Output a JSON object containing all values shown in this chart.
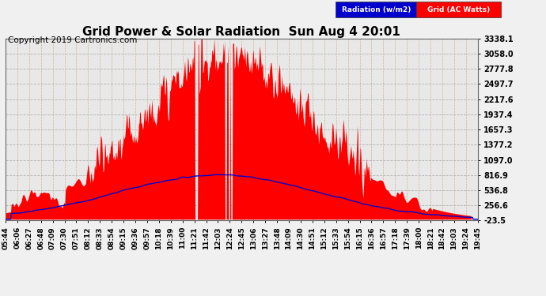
{
  "title": "Grid Power & Solar Radiation  Sun Aug 4 20:01",
  "copyright": "Copyright 2019 Cartronics.com",
  "yticks": [
    3338.1,
    3058.0,
    2777.8,
    2497.7,
    2217.6,
    1937.4,
    1657.3,
    1377.2,
    1097.0,
    816.9,
    536.8,
    256.6,
    -23.5
  ],
  "ymin": -23.5,
  "ymax": 3338.1,
  "background_color": "#f0f0f0",
  "plot_bg_color": "#e8e8e8",
  "grid_h_color": "#aaaaaa",
  "grid_v_color": "#c8a878",
  "fill_color": "#ff0000",
  "line_color": "#0000cc",
  "legend_radiation_label": "Radiation (w/m2)",
  "legend_grid_label": "Grid (AC Watts)",
  "legend_radiation_bg": "#0000cc",
  "legend_grid_bg": "#ff0000",
  "title_fontsize": 11,
  "copyright_fontsize": 7.5,
  "tick_fontsize": 7,
  "xtick_labels": [
    "05:44",
    "06:06",
    "06:27",
    "06:48",
    "07:09",
    "07:30",
    "07:51",
    "08:12",
    "08:33",
    "08:54",
    "09:15",
    "09:36",
    "09:57",
    "10:18",
    "10:39",
    "11:00",
    "11:21",
    "11:42",
    "12:03",
    "12:24",
    "12:45",
    "13:06",
    "13:27",
    "13:48",
    "14:09",
    "14:30",
    "14:51",
    "15:12",
    "15:33",
    "15:54",
    "16:15",
    "16:36",
    "16:57",
    "17:18",
    "17:39",
    "18:00",
    "18:21",
    "18:42",
    "19:03",
    "19:24",
    "19:45"
  ],
  "n_points": 820
}
